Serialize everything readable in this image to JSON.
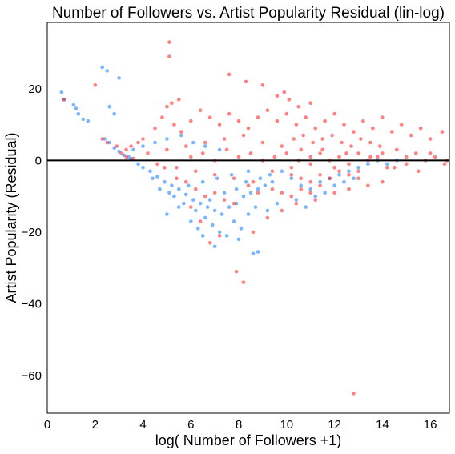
{
  "chart_data": {
    "type": "scatter",
    "title": "Number of Followers vs. Artist Popularity Residual (lin-log)",
    "xlabel": "log( Number of Followers +1)",
    "ylabel": "Artist Popularity (Residual)",
    "xlim": [
      0,
      16.8
    ],
    "ylim": [
      -70.5,
      38.5
    ],
    "xticks": [
      0,
      2,
      4,
      6,
      8,
      10,
      12,
      14,
      16
    ],
    "yticks": [
      -60,
      -40,
      -20,
      0,
      20
    ],
    "xtick_labels": [
      "0",
      "2",
      "4",
      "6",
      "8",
      "10",
      "12",
      "14",
      "16"
    ],
    "ytick_labels": [
      "−60",
      "−40",
      "−20",
      "0",
      "20"
    ],
    "grid": false,
    "reference_line": {
      "y": 0,
      "color": "#000000"
    },
    "series": [
      {
        "color": "#1e86ff",
        "opacity": 0.6,
        "description_points": "blue points",
        "points": [
          [
            0.6,
            19
          ],
          [
            0.7,
            17
          ],
          [
            1.1,
            15.5
          ],
          [
            1.2,
            14.5
          ],
          [
            1.3,
            13
          ],
          [
            1.5,
            11.5
          ],
          [
            1.7,
            11
          ],
          [
            2.3,
            26
          ],
          [
            2.5,
            25
          ],
          [
            3.0,
            23
          ],
          [
            2.6,
            15
          ],
          [
            2.8,
            13
          ],
          [
            2.4,
            6
          ],
          [
            2.6,
            5
          ],
          [
            2.8,
            3.5
          ],
          [
            3.0,
            2.5
          ],
          [
            3.2,
            1.5
          ],
          [
            3.4,
            1
          ],
          [
            3.5,
            0.5
          ],
          [
            3.8,
            -1
          ],
          [
            4.0,
            -2
          ],
          [
            4.3,
            -3
          ],
          [
            4.6,
            -4.5
          ],
          [
            4.9,
            -6
          ],
          [
            5.2,
            -7
          ],
          [
            5.5,
            -8
          ],
          [
            5.8,
            -9.5
          ],
          [
            6.1,
            -11
          ],
          [
            6.4,
            -12
          ],
          [
            6.7,
            -13
          ],
          [
            7.0,
            -14
          ],
          [
            7.3,
            -15
          ],
          [
            7.6,
            -13
          ],
          [
            7.9,
            -12
          ],
          [
            8.2,
            -10
          ],
          [
            8.5,
            -9
          ],
          [
            8.8,
            -8
          ],
          [
            9.1,
            -7
          ],
          [
            9.4,
            -6
          ],
          [
            5.0,
            -15
          ],
          [
            5.5,
            -13
          ],
          [
            6.0,
            -17
          ],
          [
            6.3,
            -19
          ],
          [
            6.6,
            -16
          ],
          [
            6.9,
            -18
          ],
          [
            7.2,
            -20
          ],
          [
            7.5,
            -21
          ],
          [
            7.8,
            -17
          ],
          [
            8.1,
            -19
          ],
          [
            8.4,
            -15
          ],
          [
            8.7,
            -13
          ],
          [
            8.6,
            -26
          ],
          [
            8.8,
            -25.5
          ],
          [
            5.3,
            -10
          ],
          [
            5.7,
            -12
          ],
          [
            6.2,
            -14
          ],
          [
            6.8,
            -11
          ],
          [
            7.4,
            -9
          ],
          [
            7.9,
            -8
          ],
          [
            8.3,
            -6
          ],
          [
            8.9,
            -5
          ],
          [
            9.3,
            -4
          ],
          [
            9.8,
            -3
          ],
          [
            10.2,
            -5
          ],
          [
            10.6,
            -7
          ],
          [
            11.0,
            -8
          ],
          [
            11.4,
            -6
          ],
          [
            11.8,
            -5
          ],
          [
            12.2,
            -4
          ],
          [
            12.6,
            -3
          ],
          [
            13.0,
            -2
          ],
          [
            13.4,
            -1
          ],
          [
            13.8,
            0
          ],
          [
            14.2,
            -1
          ],
          [
            14.6,
            0
          ],
          [
            10.4,
            -11
          ],
          [
            10.8,
            -13
          ],
          [
            11.2,
            -10
          ],
          [
            11.6,
            -9
          ],
          [
            12.0,
            -7
          ],
          [
            12.4,
            -6
          ],
          [
            12.8,
            -5
          ],
          [
            9.6,
            -12
          ],
          [
            9.2,
            -14
          ],
          [
            8.0,
            -22
          ],
          [
            7.0,
            -24
          ],
          [
            6.5,
            -21
          ],
          [
            4.4,
            -5
          ],
          [
            4.7,
            -8
          ],
          [
            5.1,
            -9
          ],
          [
            5.9,
            -7
          ],
          [
            6.5,
            -6
          ],
          [
            7.1,
            -5
          ],
          [
            7.7,
            -4
          ],
          [
            8.4,
            -3
          ],
          [
            3.6,
            3
          ],
          [
            4.0,
            4
          ],
          [
            4.5,
            5
          ],
          [
            5.0,
            6
          ],
          [
            5.6,
            7
          ],
          [
            6.1,
            5
          ],
          [
            6.6,
            4
          ],
          [
            7.2,
            3
          ]
        ]
      },
      {
        "color": "#ff1a1a",
        "opacity": 0.55,
        "description_points": "red points",
        "points": [
          [
            0.7,
            17
          ],
          [
            2.0,
            21
          ],
          [
            2.3,
            6
          ],
          [
            2.5,
            5
          ],
          [
            2.9,
            4
          ],
          [
            3.1,
            2
          ],
          [
            3.3,
            1
          ],
          [
            3.6,
            0.5
          ],
          [
            5.1,
            33
          ],
          [
            5.1,
            29
          ],
          [
            7.6,
            24
          ],
          [
            8.3,
            22
          ],
          [
            9.0,
            21
          ],
          [
            9.6,
            18
          ],
          [
            10.1,
            17
          ],
          [
            11.0,
            16
          ],
          [
            7.9,
            -31
          ],
          [
            8.2,
            -34
          ],
          [
            12.8,
            -65
          ],
          [
            6.0,
            -13
          ],
          [
            6.4,
            -17
          ],
          [
            6.8,
            -23
          ],
          [
            7.2,
            -21
          ],
          [
            8.6,
            -20
          ],
          [
            9.2,
            -16
          ],
          [
            9.8,
            -14
          ],
          [
            10.4,
            -12
          ],
          [
            11.2,
            -11
          ],
          [
            12.0,
            -9
          ],
          [
            12.6,
            -8
          ],
          [
            13.4,
            -7
          ],
          [
            14.0,
            -6
          ],
          [
            4.5,
            9
          ],
          [
            4.8,
            12
          ],
          [
            5.0,
            15
          ],
          [
            5.3,
            10
          ],
          [
            5.6,
            8
          ],
          [
            6.0,
            11
          ],
          [
            6.4,
            14
          ],
          [
            6.8,
            12
          ],
          [
            7.2,
            10
          ],
          [
            7.6,
            13
          ],
          [
            8.0,
            11
          ],
          [
            8.4,
            9
          ],
          [
            8.8,
            12
          ],
          [
            9.2,
            14
          ],
          [
            9.6,
            11
          ],
          [
            10.0,
            13
          ],
          [
            10.4,
            10
          ],
          [
            10.8,
            12
          ],
          [
            11.2,
            9
          ],
          [
            11.6,
            11
          ],
          [
            12.0,
            13
          ],
          [
            12.4,
            10
          ],
          [
            12.8,
            8
          ],
          [
            13.2,
            11
          ],
          [
            13.6,
            9
          ],
          [
            14.0,
            12
          ],
          [
            14.4,
            8
          ],
          [
            14.8,
            10
          ],
          [
            15.2,
            7
          ],
          [
            15.6,
            9
          ],
          [
            16.0,
            6
          ],
          [
            16.5,
            8
          ],
          [
            4.2,
            2
          ],
          [
            4.6,
            -1
          ],
          [
            5.0,
            3
          ],
          [
            5.4,
            -2
          ],
          [
            5.8,
            4
          ],
          [
            6.2,
            -3
          ],
          [
            6.6,
            5
          ],
          [
            7.0,
            -4
          ],
          [
            7.4,
            6
          ],
          [
            7.8,
            -5
          ],
          [
            8.2,
            7
          ],
          [
            8.6,
            -6
          ],
          [
            9.0,
            5
          ],
          [
            9.4,
            -3
          ],
          [
            9.8,
            4
          ],
          [
            10.2,
            -2
          ],
          [
            10.6,
            3
          ],
          [
            11.0,
            -1
          ],
          [
            11.4,
            2
          ],
          [
            11.8,
            0
          ],
          [
            12.2,
            1
          ],
          [
            12.6,
            -1
          ],
          [
            13.0,
            2
          ],
          [
            13.4,
            0
          ],
          [
            13.8,
            1
          ],
          [
            14.2,
            -2
          ],
          [
            14.6,
            3
          ],
          [
            15.0,
            -1
          ],
          [
            15.4,
            2
          ],
          [
            15.8,
            0
          ],
          [
            16.2,
            1
          ],
          [
            16.6,
            -1
          ],
          [
            6.0,
            1
          ],
          [
            6.5,
            2
          ],
          [
            7.0,
            0
          ],
          [
            7.5,
            3
          ],
          [
            8.0,
            1
          ],
          [
            8.5,
            2
          ],
          [
            9.0,
            0
          ],
          [
            9.5,
            1
          ],
          [
            10.0,
            2
          ],
          [
            10.5,
            0
          ],
          [
            11.0,
            1
          ],
          [
            11.5,
            3
          ],
          [
            12.0,
            -2
          ],
          [
            12.5,
            2
          ],
          [
            13.0,
            -3
          ],
          [
            13.5,
            1
          ],
          [
            14.0,
            2
          ],
          [
            14.5,
            -2
          ],
          [
            15.0,
            1
          ],
          [
            15.5,
            -3
          ],
          [
            16.0,
            2
          ],
          [
            16.7,
            0
          ],
          [
            10.3,
            6
          ],
          [
            10.7,
            7
          ],
          [
            11.1,
            5
          ],
          [
            11.5,
            6
          ],
          [
            11.9,
            7
          ],
          [
            12.3,
            5
          ],
          [
            12.7,
            4
          ],
          [
            13.1,
            6
          ],
          [
            13.5,
            5
          ],
          [
            13.9,
            4
          ],
          [
            10.2,
            -4
          ],
          [
            10.6,
            -5
          ],
          [
            11.0,
            -6
          ],
          [
            11.4,
            -4
          ],
          [
            11.8,
            -5
          ],
          [
            12.2,
            -3
          ],
          [
            12.6,
            -4
          ],
          [
            13.0,
            -5
          ],
          [
            9.4,
            -8
          ],
          [
            9.8,
            -9
          ],
          [
            10.2,
            -10
          ],
          [
            10.6,
            -8
          ],
          [
            11.0,
            -9
          ],
          [
            11.4,
            -7
          ],
          [
            8.4,
            -7
          ],
          [
            8.8,
            -9
          ],
          [
            6.2,
            -8
          ],
          [
            6.6,
            -10
          ],
          [
            7.0,
            -9
          ],
          [
            7.4,
            -11
          ],
          [
            7.8,
            -12
          ],
          [
            5.4,
            -5
          ],
          [
            5.8,
            -6
          ],
          [
            4.9,
            -2
          ],
          [
            4.0,
            6
          ],
          [
            3.8,
            5
          ],
          [
            3.5,
            4
          ],
          [
            3.3,
            3
          ],
          [
            5.2,
            16
          ],
          [
            5.5,
            17
          ],
          [
            9.9,
            19
          ],
          [
            10.5,
            15
          ]
        ]
      }
    ]
  }
}
